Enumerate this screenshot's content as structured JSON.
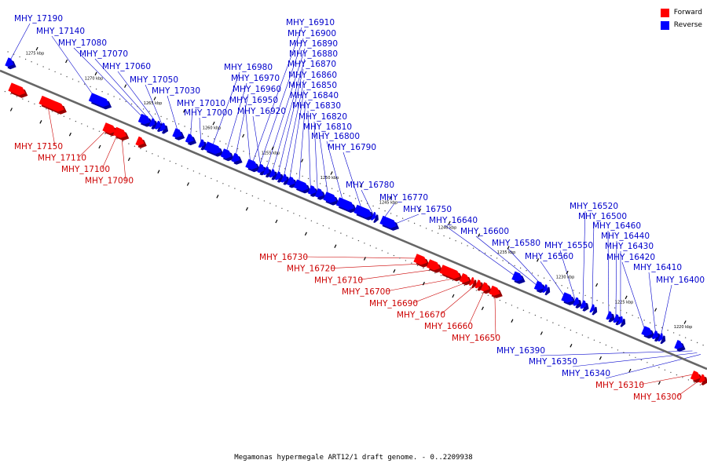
{
  "legend": {
    "forward": {
      "label": "Forward",
      "color": "#ff0000"
    },
    "reverse": {
      "label": "Reverse",
      "color": "#0000ff"
    }
  },
  "caption": "Megamonas hypermegale ART12/1 draft genome. - 0..2209938",
  "backbone": {
    "start_kbp": 1277,
    "end_kbp": 1217
  },
  "ticks": [
    "1275 kbp",
    "1270 kbp",
    "1265 kbp",
    "1260 kbp",
    "1255 kbp",
    "1250 kbp",
    "1245 kbp",
    "1240 kbp",
    "1235 kbp",
    "1230 kbp",
    "1225 kbp",
    "1220 kbp"
  ],
  "genes": [
    {
      "pos": 1276.8,
      "len": 0.6,
      "strand": "reverse"
    },
    {
      "pos": 1275.8,
      "len": 1.3,
      "strand": "forward"
    },
    {
      "pos": 1273.2,
      "len": 2.0,
      "strand": "forward"
    },
    {
      "pos": 1272.0,
      "len": 0.8,
      "strand": "forward"
    },
    {
      "pos": 1269.7,
      "len": 1.6,
      "strand": "reverse"
    },
    {
      "pos": 1267.8,
      "len": 1.0,
      "strand": "forward"
    },
    {
      "pos": 1266.9,
      "len": 1.0,
      "strand": "forward"
    },
    {
      "pos": 1265.5,
      "len": 0.9,
      "strand": "reverse"
    },
    {
      "pos": 1265.0,
      "len": 0.6,
      "strand": "forward"
    },
    {
      "pos": 1264.6,
      "len": 0.4,
      "strand": "reverse"
    },
    {
      "pos": 1264.1,
      "len": 0.4,
      "strand": "reverse"
    },
    {
      "pos": 1263.7,
      "len": 0.4,
      "strand": "reverse"
    },
    {
      "pos": 1262.6,
      "len": 0.7,
      "strand": "reverse"
    },
    {
      "pos": 1261.5,
      "len": 0.6,
      "strand": "reverse"
    },
    {
      "pos": 1260.4,
      "len": 0.4,
      "strand": "reverse"
    },
    {
      "pos": 1259.9,
      "len": 1.3,
      "strand": "reverse"
    },
    {
      "pos": 1258.5,
      "len": 0.8,
      "strand": "reverse"
    },
    {
      "pos": 1257.6,
      "len": 0.6,
      "strand": "reverse"
    },
    {
      "pos": 1256.4,
      "len": 0.9,
      "strand": "reverse"
    },
    {
      "pos": 1255.4,
      "len": 0.5,
      "strand": "reverse"
    },
    {
      "pos": 1254.9,
      "len": 0.4,
      "strand": "reverse"
    },
    {
      "pos": 1254.4,
      "len": 0.4,
      "strand": "reverse"
    },
    {
      "pos": 1253.9,
      "len": 0.4,
      "strand": "reverse"
    },
    {
      "pos": 1253.4,
      "len": 0.4,
      "strand": "reverse"
    },
    {
      "pos": 1252.9,
      "len": 0.6,
      "strand": "reverse"
    },
    {
      "pos": 1252.3,
      "len": 1.1,
      "strand": "reverse"
    },
    {
      "pos": 1251.1,
      "len": 0.6,
      "strand": "reverse"
    },
    {
      "pos": 1250.5,
      "len": 0.6,
      "strand": "reverse"
    },
    {
      "pos": 1249.8,
      "len": 1.0,
      "strand": "reverse"
    },
    {
      "pos": 1248.7,
      "len": 1.4,
      "strand": "reverse"
    },
    {
      "pos": 1247.2,
      "len": 1.4,
      "strand": "reverse"
    },
    {
      "pos": 1245.7,
      "len": 0.2,
      "strand": "reverse"
    },
    {
      "pos": 1245.0,
      "len": 1.3,
      "strand": "reverse"
    },
    {
      "pos": 1241.4,
      "len": 1.0,
      "strand": "forward"
    },
    {
      "pos": 1240.3,
      "len": 1.0,
      "strand": "forward"
    },
    {
      "pos": 1239.2,
      "len": 1.6,
      "strand": "forward"
    },
    {
      "pos": 1237.5,
      "len": 0.7,
      "strand": "forward"
    },
    {
      "pos": 1236.7,
      "len": 0.3,
      "strand": "forward"
    },
    {
      "pos": 1236.2,
      "len": 0.4,
      "strand": "forward"
    },
    {
      "pos": 1235.7,
      "len": 0.6,
      "strand": "forward"
    },
    {
      "pos": 1235.0,
      "len": 0.8,
      "strand": "forward"
    },
    {
      "pos": 1233.8,
      "len": 0.8,
      "strand": "reverse"
    },
    {
      "pos": 1231.9,
      "len": 0.7,
      "strand": "reverse"
    },
    {
      "pos": 1231.2,
      "len": 0.3,
      "strand": "reverse"
    },
    {
      "pos": 1229.6,
      "len": 0.9,
      "strand": "reverse"
    },
    {
      "pos": 1228.6,
      "len": 0.4,
      "strand": "reverse"
    },
    {
      "pos": 1228.0,
      "len": 0.4,
      "strand": "reverse"
    },
    {
      "pos": 1227.2,
      "len": 0.3,
      "strand": "reverse"
    },
    {
      "pos": 1225.8,
      "len": 0.4,
      "strand": "reverse"
    },
    {
      "pos": 1225.2,
      "len": 0.4,
      "strand": "reverse"
    },
    {
      "pos": 1224.8,
      "len": 0.3,
      "strand": "reverse"
    },
    {
      "pos": 1222.8,
      "len": 0.8,
      "strand": "reverse"
    },
    {
      "pos": 1221.9,
      "len": 0.4,
      "strand": "reverse"
    },
    {
      "pos": 1221.4,
      "len": 0.3,
      "strand": "reverse"
    },
    {
      "pos": 1220.0,
      "len": 0.6,
      "strand": "reverse"
    },
    {
      "pos": 1217.9,
      "len": 0.7,
      "strand": "forward"
    },
    {
      "pos": 1217.2,
      "len": 0.4,
      "strand": "forward"
    }
  ],
  "labels": {
    "forward": [
      {
        "text": "MHY_17150",
        "pos": 1272.7
      },
      {
        "text": "MHY_17110",
        "pos": 1267.4
      },
      {
        "text": "MHY_17100",
        "pos": 1266.6
      },
      {
        "text": "MHY_17090",
        "pos": 1266.4
      },
      {
        "text": "MHY_16730",
        "pos": 1241.0
      },
      {
        "text": "MHY_16720",
        "pos": 1240.0
      },
      {
        "text": "MHY_16710",
        "pos": 1239.0
      },
      {
        "text": "MHY_16700",
        "pos": 1237.3
      },
      {
        "text": "MHY_16690",
        "pos": 1236.6
      },
      {
        "text": "MHY_16670",
        "pos": 1236.1
      },
      {
        "text": "MHY_16660",
        "pos": 1235.4
      },
      {
        "text": "MHY_16650",
        "pos": 1234.7
      },
      {
        "text": "MHY_16310",
        "pos": 1217.7
      },
      {
        "text": "MHY_16300",
        "pos": 1217.0
      }
    ],
    "reverse": [
      {
        "text": "MHY_17190",
        "pos": 1276.6
      },
      {
        "text": "MHY_17140",
        "pos": 1269.2
      },
      {
        "text": "MHY_17080",
        "pos": 1265.0
      },
      {
        "text": "MHY_17070",
        "pos": 1264.4
      },
      {
        "text": "MHY_17060",
        "pos": 1263.9
      },
      {
        "text": "MHY_17050",
        "pos": 1263.5
      },
      {
        "text": "MHY_17030",
        "pos": 1262.2
      },
      {
        "text": "MHY_17010",
        "pos": 1261.2
      },
      {
        "text": "MHY_17000",
        "pos": 1260.3
      },
      {
        "text": "MHY_16980",
        "pos": 1259.4
      },
      {
        "text": "MHY_16970",
        "pos": 1258.2
      },
      {
        "text": "MHY_16960",
        "pos": 1257.4
      },
      {
        "text": "MHY_16950",
        "pos": 1256.1
      },
      {
        "text": "MHY_16920",
        "pos": 1255.2
      },
      {
        "text": "MHY_16910",
        "pos": 1256.0
      },
      {
        "text": "MHY_16900",
        "pos": 1255.4
      },
      {
        "text": "MHY_16890",
        "pos": 1254.8
      },
      {
        "text": "MHY_16880",
        "pos": 1254.3
      },
      {
        "text": "MHY_16870",
        "pos": 1253.8
      },
      {
        "text": "MHY_16860",
        "pos": 1253.3
      },
      {
        "text": "MHY_16850",
        "pos": 1252.8
      },
      {
        "text": "MHY_16840",
        "pos": 1252.0
      },
      {
        "text": "MHY_16830",
        "pos": 1251.0
      },
      {
        "text": "MHY_16820",
        "pos": 1250.4
      },
      {
        "text": "MHY_16810",
        "pos": 1249.5
      },
      {
        "text": "MHY_16800",
        "pos": 1248.2
      },
      {
        "text": "MHY_16790",
        "pos": 1246.6
      },
      {
        "text": "MHY_16780",
        "pos": 1245.6
      },
      {
        "text": "MHY_16770",
        "pos": 1244.9
      },
      {
        "text": "MHY_16750",
        "pos": 1244.0
      },
      {
        "text": "MHY_16640",
        "pos": 1233.6
      },
      {
        "text": "MHY_16600",
        "pos": 1231.8
      },
      {
        "text": "MHY_16580",
        "pos": 1231.1
      },
      {
        "text": "MHY_16560",
        "pos": 1229.4
      },
      {
        "text": "MHY_16550",
        "pos": 1228.5
      },
      {
        "text": "MHY_16520",
        "pos": 1227.9
      },
      {
        "text": "MHY_16500",
        "pos": 1227.1
      },
      {
        "text": "MHY_16460",
        "pos": 1225.7
      },
      {
        "text": "MHY_16440",
        "pos": 1225.1
      },
      {
        "text": "MHY_16430",
        "pos": 1224.7
      },
      {
        "text": "MHY_16420",
        "pos": 1222.6
      },
      {
        "text": "MHY_16410",
        "pos": 1221.7
      },
      {
        "text": "MHY_16400",
        "pos": 1221.3
      },
      {
        "text": "MHY_16390",
        "pos": 1218.6
      },
      {
        "text": "MHY_16350",
        "pos": 1218.2
      },
      {
        "text": "MHY_16340",
        "pos": 1217.9
      }
    ]
  }
}
